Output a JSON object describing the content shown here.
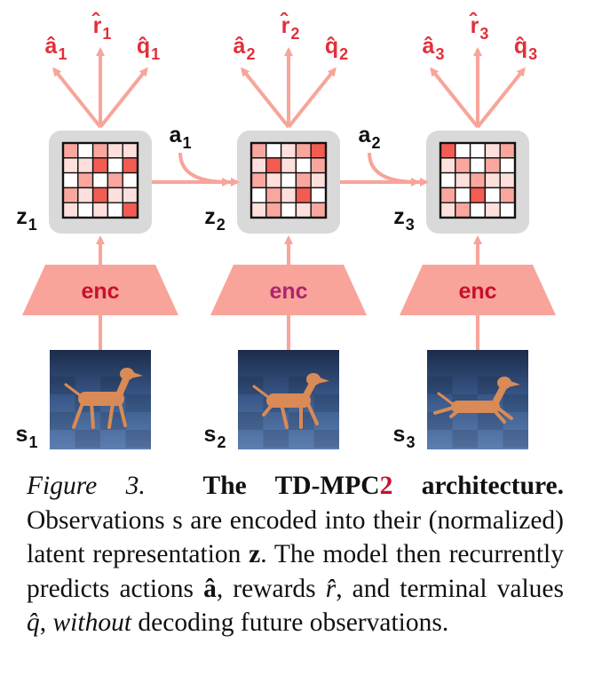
{
  "colors": {
    "arrow": "#f8a49a",
    "head_label": "#e0303a",
    "latent_box": "#d9d9d9",
    "grid_line": "#111111",
    "encoder": "#f8a49a",
    "enc_text_1": "#c8102e",
    "enc_text_2": "#b0236a",
    "enc_text_3": "#c8102e",
    "scene_floor": "#2f4a75",
    "dog": "#d98a56"
  },
  "diagram": {
    "steps": [
      {
        "heads": [
          {
            "base": "a",
            "hat": "^",
            "sub": "1"
          },
          {
            "base": "r",
            "hat": "^",
            "sub": "1"
          },
          {
            "base": "q",
            "hat": "^",
            "sub": "1"
          }
        ],
        "latent": {
          "base": "z",
          "sub": "1"
        },
        "enc_label": "enc",
        "state": {
          "base": "s",
          "sub": "1"
        },
        "cell_shades": [
          2,
          0,
          2,
          1,
          1,
          1,
          1,
          3,
          0,
          3,
          0,
          2,
          0,
          2,
          0,
          2,
          1,
          3,
          1,
          1,
          1,
          0,
          1,
          0,
          3
        ]
      },
      {
        "heads": [
          {
            "base": "a",
            "hat": "^",
            "sub": "2"
          },
          {
            "base": "r",
            "hat": "^",
            "sub": "2"
          },
          {
            "base": "q",
            "hat": "^",
            "sub": "2"
          }
        ],
        "latent": {
          "base": "z",
          "sub": "2"
        },
        "enc_label": "enc",
        "state": {
          "base": "s",
          "sub": "2"
        },
        "cell_shades": [
          2,
          0,
          1,
          2,
          3,
          1,
          3,
          1,
          0,
          2,
          2,
          1,
          0,
          2,
          1,
          0,
          2,
          1,
          3,
          0,
          1,
          2,
          0,
          1,
          2
        ]
      },
      {
        "heads": [
          {
            "base": "a",
            "hat": "^",
            "sub": "3"
          },
          {
            "base": "r",
            "hat": "^",
            "sub": "3"
          },
          {
            "base": "q",
            "hat": "^",
            "sub": "3"
          }
        ],
        "latent": {
          "base": "z",
          "sub": "3"
        },
        "enc_label": "enc",
        "state": {
          "base": "s",
          "sub": "3"
        },
        "cell_shades": [
          3,
          0,
          0,
          1,
          2,
          1,
          2,
          0,
          2,
          0,
          0,
          1,
          2,
          1,
          1,
          2,
          0,
          3,
          0,
          2,
          1,
          2,
          0,
          1,
          0
        ]
      }
    ],
    "actions": [
      {
        "base": "a",
        "sub": "1"
      },
      {
        "base": "a",
        "sub": "2"
      }
    ]
  },
  "caption": {
    "figure_label": "Figure 3.",
    "title_pre": "The TD-MPC",
    "title_accent": "2",
    "title_post": " architecture.",
    "sentence_1a": "Observations ",
    "sym_s": "s",
    "sentence_1b": " are encoded into their (normalized) latent representation ",
    "sym_z": "z",
    "sentence_1c": ". The model then recurrently predicts actions ",
    "sym_a": "â",
    "sentence_2a": ", rewards ",
    "sym_r": "r̂",
    "sentence_2b": ", and terminal values ",
    "sym_q": "q̂",
    "sentence_2c": ", ",
    "word_without": "without",
    "sentence_2d": " decoding future observations."
  }
}
